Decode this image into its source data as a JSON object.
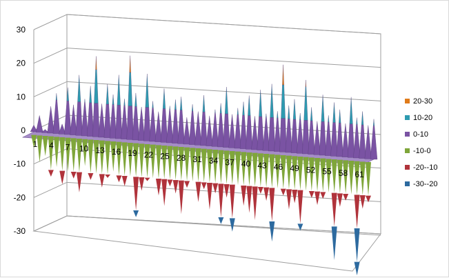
{
  "chart_data": {
    "type": "surface",
    "z_ticks": [
      "30",
      "20",
      "10",
      "0",
      "-10",
      "-20",
      "-30"
    ],
    "zlim": [
      -30,
      30
    ],
    "x_ticks": [
      "1",
      "4",
      "7",
      "10",
      "13",
      "16",
      "19",
      "22",
      "25",
      "28",
      "31",
      "34",
      "37",
      "40",
      "43",
      "46",
      "49",
      "52",
      "55",
      "58",
      "61"
    ],
    "legend": [
      {
        "label": "20-30",
        "color": "#e07b1a"
      },
      {
        "label": "10-20",
        "color": "#2e9bb0"
      },
      {
        "label": "0-10",
        "color": "#7a53a3"
      },
      {
        "label": "-10-0",
        "color": "#7fa63a"
      },
      {
        "label": "-20--10",
        "color": "#b0333b"
      },
      {
        "label": "-30--20",
        "color": "#2d6a9f"
      }
    ],
    "series": [
      {
        "values": [
          2,
          5,
          1,
          8,
          12,
          3,
          14,
          9,
          18,
          11,
          15,
          24,
          10,
          16,
          13,
          19,
          12,
          25,
          14,
          10,
          20,
          12,
          9,
          16,
          11,
          13,
          14,
          8,
          12,
          10,
          15,
          9,
          11,
          13,
          18,
          10,
          12,
          14,
          16,
          10,
          18,
          11,
          20,
          12,
          26,
          14,
          16,
          12,
          22,
          14,
          10,
          18,
          12,
          16,
          14,
          10,
          18,
          12,
          14,
          10,
          12
        ]
      },
      {
        "values": [
          0,
          -4,
          -8,
          -6,
          -12,
          -9,
          -14,
          -10,
          -12,
          -16,
          -8,
          -12,
          -10,
          -14,
          -11,
          -9,
          -12,
          -13,
          -10,
          -22,
          -14,
          -11,
          -10,
          -15,
          -18,
          -12,
          -14,
          -20,
          -12,
          -10,
          -16,
          -12,
          -18,
          -13,
          -22,
          -14,
          -24,
          -10,
          -16,
          -18,
          -20,
          -12,
          -14,
          -26,
          -10,
          -12,
          -16,
          -14,
          -22,
          -10,
          -12,
          -14,
          -12,
          -10,
          -30,
          -14,
          -12,
          -10,
          -34,
          -14,
          -12
        ]
      }
    ]
  }
}
